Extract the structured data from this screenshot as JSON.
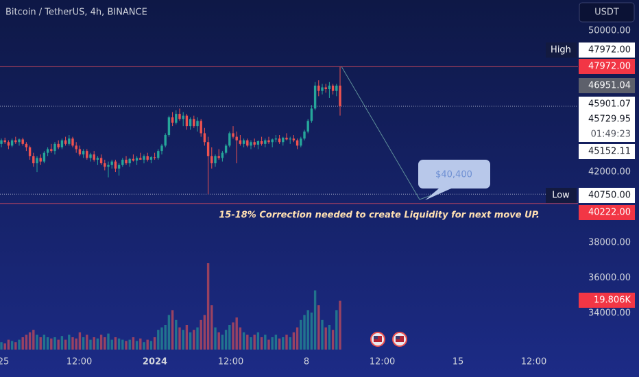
{
  "chart_data": {
    "type": "candlestick",
    "title": "Bitcoin / TetherUS, 4h, BINANCE",
    "currency": "USDT",
    "annotation": "15-18% Correction needed to create Liquidity for next move UP.",
    "callout": "$40,400",
    "up_color": "#26a69a",
    "down_color": "#ef5350",
    "ylim": [
      31750,
      51750
    ],
    "yticks": [
      {
        "value": 34000,
        "label": "34000.00"
      },
      {
        "value": 36000,
        "label": "36000.00"
      },
      {
        "value": 38000,
        "label": "38000.00"
      },
      {
        "value": 42000,
        "label": "42000.00"
      },
      {
        "value": 50000,
        "label": "50000.00"
      }
    ],
    "xtick_labels": [
      "25",
      "12:00",
      "2024",
      "12:00",
      "8",
      "12:00",
      "15",
      "12:00"
    ],
    "high": {
      "name": "High",
      "value": 47972,
      "label": "47972.00"
    },
    "low": {
      "name": "Low",
      "value": 40750,
      "label": "40750.00"
    },
    "price_labels": [
      {
        "value": 47972,
        "label": "47972.00",
        "color": "#f23645"
      },
      {
        "value": 46951.04,
        "label": "46951.04",
        "color": "#5d606b"
      },
      {
        "value": 45901.07,
        "label": "45901.07",
        "color": "#ffffff"
      },
      {
        "value": 45729.95,
        "label": "45729.95",
        "color": "#ffffff",
        "countdown": "01:49:23"
      },
      {
        "value": 45152.11,
        "label": "45152.11",
        "color": "#ffffff"
      },
      {
        "value": 40222,
        "label": "40222.00",
        "color": "#f23645"
      }
    ],
    "last_volume_label": "19.806K",
    "candles": [
      [
        43600,
        43900,
        43400,
        43800,
        3000
      ],
      [
        43800,
        43950,
        43600,
        43700,
        2500
      ],
      [
        43700,
        43800,
        43300,
        43500,
        4000
      ],
      [
        43500,
        43900,
        43400,
        43800,
        3500
      ],
      [
        43800,
        44000,
        43600,
        43700,
        3000
      ],
      [
        43700,
        43900,
        43500,
        43850,
        4000
      ],
      [
        43850,
        43950,
        43500,
        43600,
        5000
      ],
      [
        43600,
        43700,
        43200,
        43400,
        6000
      ],
      [
        43400,
        43500,
        42700,
        42900,
        7000
      ],
      [
        42900,
        43100,
        42300,
        42500,
        8000
      ],
      [
        42500,
        42900,
        42000,
        42800,
        6000
      ],
      [
        42800,
        43000,
        42400,
        42600,
        5000
      ],
      [
        42600,
        43200,
        42500,
        43100,
        6000
      ],
      [
        43100,
        43400,
        42900,
        43300,
        5000
      ],
      [
        43300,
        43600,
        43100,
        43200,
        4500
      ],
      [
        43200,
        43700,
        43000,
        43600,
        5000
      ],
      [
        43600,
        43800,
        43300,
        43400,
        4000
      ],
      [
        43400,
        43900,
        43300,
        43800,
        5500
      ],
      [
        43800,
        44000,
        43500,
        43600,
        4000
      ],
      [
        43600,
        44100,
        43500,
        43900,
        6000
      ],
      [
        43900,
        44000,
        43400,
        43500,
        5000
      ],
      [
        43500,
        43700,
        43100,
        43300,
        4500
      ],
      [
        43300,
        43500,
        42900,
        43000,
        7000
      ],
      [
        43000,
        43300,
        42800,
        43200,
        5000
      ],
      [
        43200,
        43300,
        42700,
        42800,
        6000
      ],
      [
        42800,
        43100,
        42600,
        43000,
        4000
      ],
      [
        43000,
        43200,
        42600,
        42700,
        5000
      ],
      [
        42700,
        42900,
        42400,
        42800,
        4500
      ],
      [
        42800,
        43000,
        42400,
        42500,
        6000
      ],
      [
        42500,
        42700,
        42100,
        42300,
        5000
      ],
      [
        42300,
        42600,
        41700,
        42400,
        6500
      ],
      [
        42400,
        42700,
        42200,
        42600,
        4000
      ],
      [
        42600,
        42700,
        42000,
        42200,
        5000
      ],
      [
        42200,
        42500,
        41800,
        42400,
        4500
      ],
      [
        42400,
        42800,
        42300,
        42700,
        4000
      ],
      [
        42700,
        42900,
        42400,
        42500,
        3500
      ],
      [
        42500,
        42800,
        42300,
        42750,
        4000
      ],
      [
        42750,
        43000,
        42600,
        42650,
        5000
      ],
      [
        42650,
        42900,
        42400,
        42800,
        3500
      ],
      [
        42800,
        43100,
        42700,
        42700,
        4500
      ],
      [
        42700,
        43000,
        42500,
        42900,
        3000
      ],
      [
        42900,
        43100,
        42600,
        42700,
        4000
      ],
      [
        42700,
        42900,
        42500,
        42850,
        3500
      ],
      [
        42850,
        43100,
        42700,
        42800,
        5000
      ],
      [
        42800,
        43300,
        42700,
        43200,
        8000
      ],
      [
        43200,
        43600,
        43000,
        43500,
        9000
      ],
      [
        43500,
        44200,
        43400,
        44100,
        10000
      ],
      [
        44100,
        45200,
        44000,
        45100,
        14000
      ],
      [
        45100,
        45400,
        44600,
        44800,
        16000
      ],
      [
        44800,
        45500,
        44700,
        45300,
        12000
      ],
      [
        45300,
        45600,
        44900,
        45000,
        9000
      ],
      [
        45000,
        45400,
        44600,
        45200,
        8000
      ],
      [
        45200,
        45300,
        44400,
        44600,
        10000
      ],
      [
        44600,
        45100,
        44400,
        45000,
        7000
      ],
      [
        45000,
        45200,
        44500,
        44600,
        8000
      ],
      [
        44600,
        45100,
        44300,
        44900,
        9000
      ],
      [
        44900,
        45000,
        44000,
        44200,
        12000
      ],
      [
        44200,
        44500,
        43500,
        43700,
        14000
      ],
      [
        43700,
        44000,
        40750,
        42900,
        35000
      ],
      [
        42900,
        43400,
        42200,
        42500,
        18000
      ],
      [
        42500,
        43000,
        42300,
        42900,
        9000
      ],
      [
        42900,
        43300,
        42700,
        42800,
        7000
      ],
      [
        42800,
        43200,
        42600,
        43100,
        6000
      ],
      [
        43100,
        43600,
        43000,
        43500,
        8000
      ],
      [
        43500,
        44300,
        43400,
        44200,
        10000
      ],
      [
        44200,
        44600,
        43900,
        44000,
        11000
      ],
      [
        44000,
        44300,
        42500,
        43800,
        13000
      ],
      [
        43800,
        44100,
        43500,
        43600,
        9000
      ],
      [
        43600,
        43900,
        43400,
        43800,
        7000
      ],
      [
        43800,
        43900,
        43400,
        43500,
        6000
      ],
      [
        43500,
        43800,
        43300,
        43700,
        5000
      ],
      [
        43700,
        43900,
        43400,
        43550,
        6000
      ],
      [
        43550,
        43800,
        43300,
        43750,
        7000
      ],
      [
        43750,
        44000,
        43500,
        43600,
        5000
      ],
      [
        43600,
        43900,
        43400,
        43800,
        6000
      ],
      [
        43800,
        44000,
        43600,
        43700,
        4000
      ],
      [
        43700,
        43900,
        43400,
        43850,
        5000
      ],
      [
        43850,
        44100,
        43700,
        43900,
        6000
      ],
      [
        43900,
        44100,
        43600,
        43700,
        4500
      ],
      [
        43700,
        44000,
        43500,
        43950,
        5000
      ],
      [
        43950,
        44200,
        43800,
        43850,
        6000
      ],
      [
        43850,
        44000,
        43600,
        43900,
        5000
      ],
      [
        43900,
        44100,
        43700,
        43800,
        7000
      ],
      [
        43800,
        43900,
        43300,
        43500,
        9000
      ],
      [
        43500,
        44000,
        43400,
        43900,
        12000
      ],
      [
        43900,
        44400,
        43800,
        44300,
        14000
      ],
      [
        44300,
        45000,
        44200,
        44900,
        16000
      ],
      [
        44900,
        45800,
        44800,
        45600,
        15000
      ],
      [
        45600,
        47100,
        45500,
        46900,
        24000
      ],
      [
        46900,
        47200,
        46300,
        46600,
        18000
      ],
      [
        46600,
        47000,
        46400,
        46800,
        12000
      ],
      [
        46800,
        47000,
        46500,
        46700,
        9000
      ],
      [
        46700,
        47100,
        46200,
        46900,
        10000
      ],
      [
        46900,
        47000,
        46400,
        46600,
        8000
      ],
      [
        46600,
        47000,
        46300,
        46900,
        16000
      ],
      [
        46900,
        47972,
        45200,
        45730,
        19806
      ]
    ]
  }
}
